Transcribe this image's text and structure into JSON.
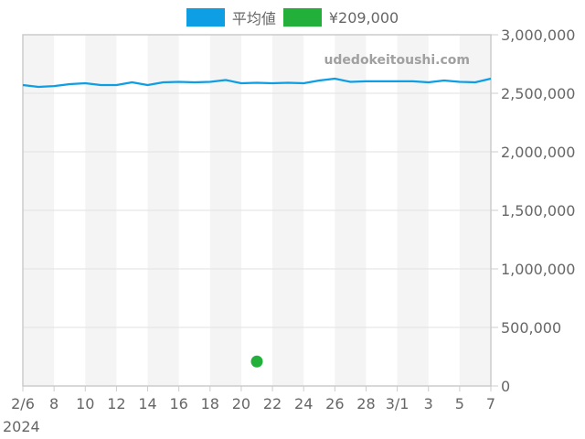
{
  "legend": [
    {
      "label": "平均値",
      "color": "#0e9ee3",
      "icon": "line-series-swatch"
    },
    {
      "label": "¥209,000",
      "color": "#22b03a",
      "icon": "point-series-swatch"
    }
  ],
  "watermark": "udedokeitoushi.com",
  "x_axis": {
    "ticks": [
      {
        "day": 0,
        "label": "2/6"
      },
      {
        "day": 2,
        "label": "8"
      },
      {
        "day": 4,
        "label": "10"
      },
      {
        "day": 6,
        "label": "12"
      },
      {
        "day": 8,
        "label": "14"
      },
      {
        "day": 10,
        "label": "16"
      },
      {
        "day": 12,
        "label": "18"
      },
      {
        "day": 14,
        "label": "20"
      },
      {
        "day": 16,
        "label": "22"
      },
      {
        "day": 18,
        "label": "24"
      },
      {
        "day": 20,
        "label": "26"
      },
      {
        "day": 22,
        "label": "28"
      },
      {
        "day": 24,
        "label": "3/1"
      },
      {
        "day": 26,
        "label": "3"
      },
      {
        "day": 28,
        "label": "5"
      },
      {
        "day": 30,
        "label": "7"
      }
    ],
    "year_label": "2024"
  },
  "y_axis": {
    "ticks": [
      {
        "value": 0,
        "label": "0"
      },
      {
        "value": 500000,
        "label": "500,000"
      },
      {
        "value": 1000000,
        "label": "1,000,000"
      },
      {
        "value": 1500000,
        "label": "1,500,000"
      },
      {
        "value": 2000000,
        "label": "2,000,000"
      },
      {
        "value": 2500000,
        "label": "2,500,000"
      },
      {
        "value": 3000000,
        "label": "3,000,000"
      }
    ]
  },
  "chart_data": {
    "type": "line",
    "title": "",
    "xlabel": "",
    "ylabel": "",
    "ylim": [
      0,
      3000000
    ],
    "xlim": [
      "2024-02-06",
      "2024-03-07"
    ],
    "grid": true,
    "legend_position": "top",
    "x": [
      "2/6",
      "2/7",
      "2/8",
      "2/9",
      "2/10",
      "2/11",
      "2/12",
      "2/13",
      "2/14",
      "2/15",
      "2/16",
      "2/17",
      "2/18",
      "2/19",
      "2/20",
      "2/21",
      "2/22",
      "2/23",
      "2/24",
      "2/25",
      "2/26",
      "2/27",
      "2/28",
      "2/29",
      "3/1",
      "3/2",
      "3/3",
      "3/4",
      "3/5",
      "3/6",
      "3/7"
    ],
    "series": [
      {
        "name": "平均値",
        "type": "line",
        "color": "#0e9ee3",
        "values": [
          2570000,
          2555000,
          2562000,
          2578000,
          2586000,
          2570000,
          2570000,
          2594000,
          2570000,
          2594000,
          2598000,
          2594000,
          2598000,
          2613000,
          2586000,
          2590000,
          2586000,
          2590000,
          2586000,
          2609000,
          2625000,
          2598000,
          2602000,
          2602000,
          2602000,
          2602000,
          2594000,
          2609000,
          2598000,
          2594000,
          2625000
        ]
      },
      {
        "name": "¥209,000",
        "type": "scatter",
        "color": "#22b03a",
        "points": [
          {
            "x": "2/21",
            "y": 209000
          }
        ]
      }
    ],
    "annotations": [
      "udedokeitoushi.com"
    ]
  }
}
